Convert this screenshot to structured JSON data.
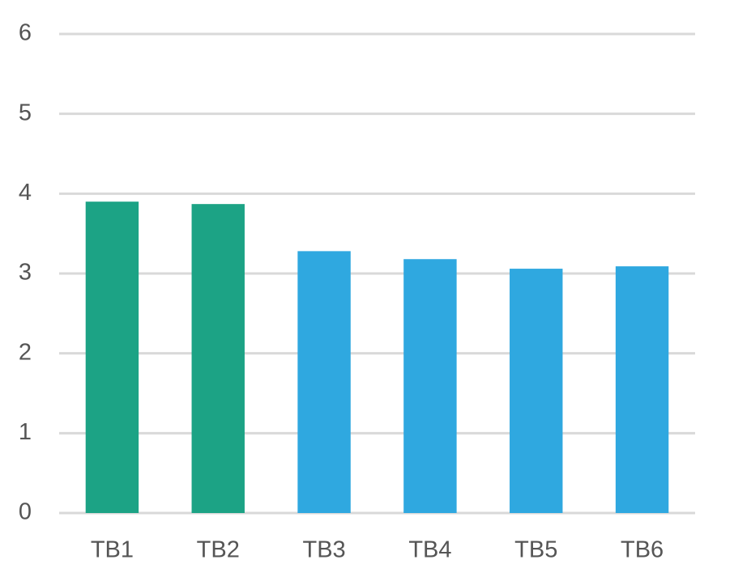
{
  "chart_data": {
    "type": "bar",
    "categories": [
      "TB1",
      "TB2",
      "TB3",
      "TB4",
      "TB5",
      "TB6"
    ],
    "values": [
      3.9,
      3.87,
      3.28,
      3.18,
      3.06,
      3.09
    ],
    "colors": [
      "#1ca385",
      "#1ca385",
      "#2fa8e0",
      "#2fa8e0",
      "#2fa8e0",
      "#2fa8e0"
    ],
    "ylim": [
      0,
      6
    ],
    "yticks": [
      0,
      1,
      2,
      3,
      4,
      5,
      6
    ],
    "grid": true
  }
}
